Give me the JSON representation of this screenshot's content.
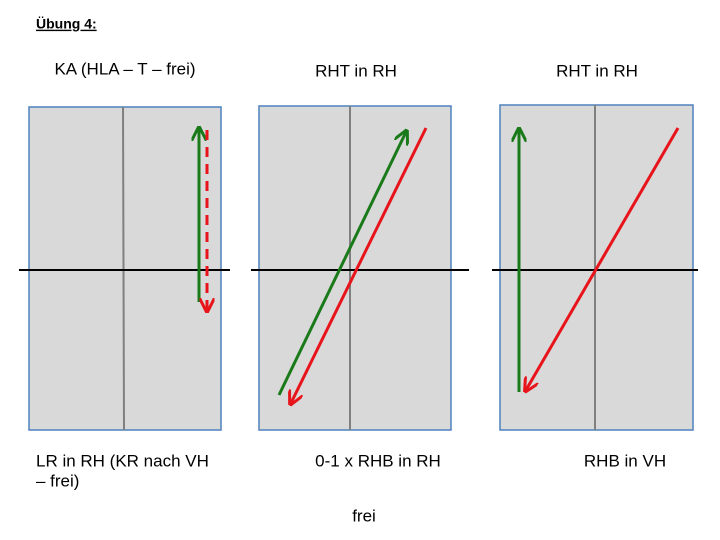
{
  "header": {
    "title": "Übung 4:"
  },
  "panels": [
    {
      "top_label": "KA (HLA – T – frei)",
      "bottom_label": [
        "LR in RH (KR nach VH",
        "– frei)"
      ]
    },
    {
      "top_label": "RHT in RH",
      "bottom_label": [
        "0-1 x RHB in RH"
      ]
    },
    {
      "top_label": "RHT in RH",
      "bottom_label": [
        "RHB in VH"
      ]
    }
  ],
  "footer": "frei"
}
